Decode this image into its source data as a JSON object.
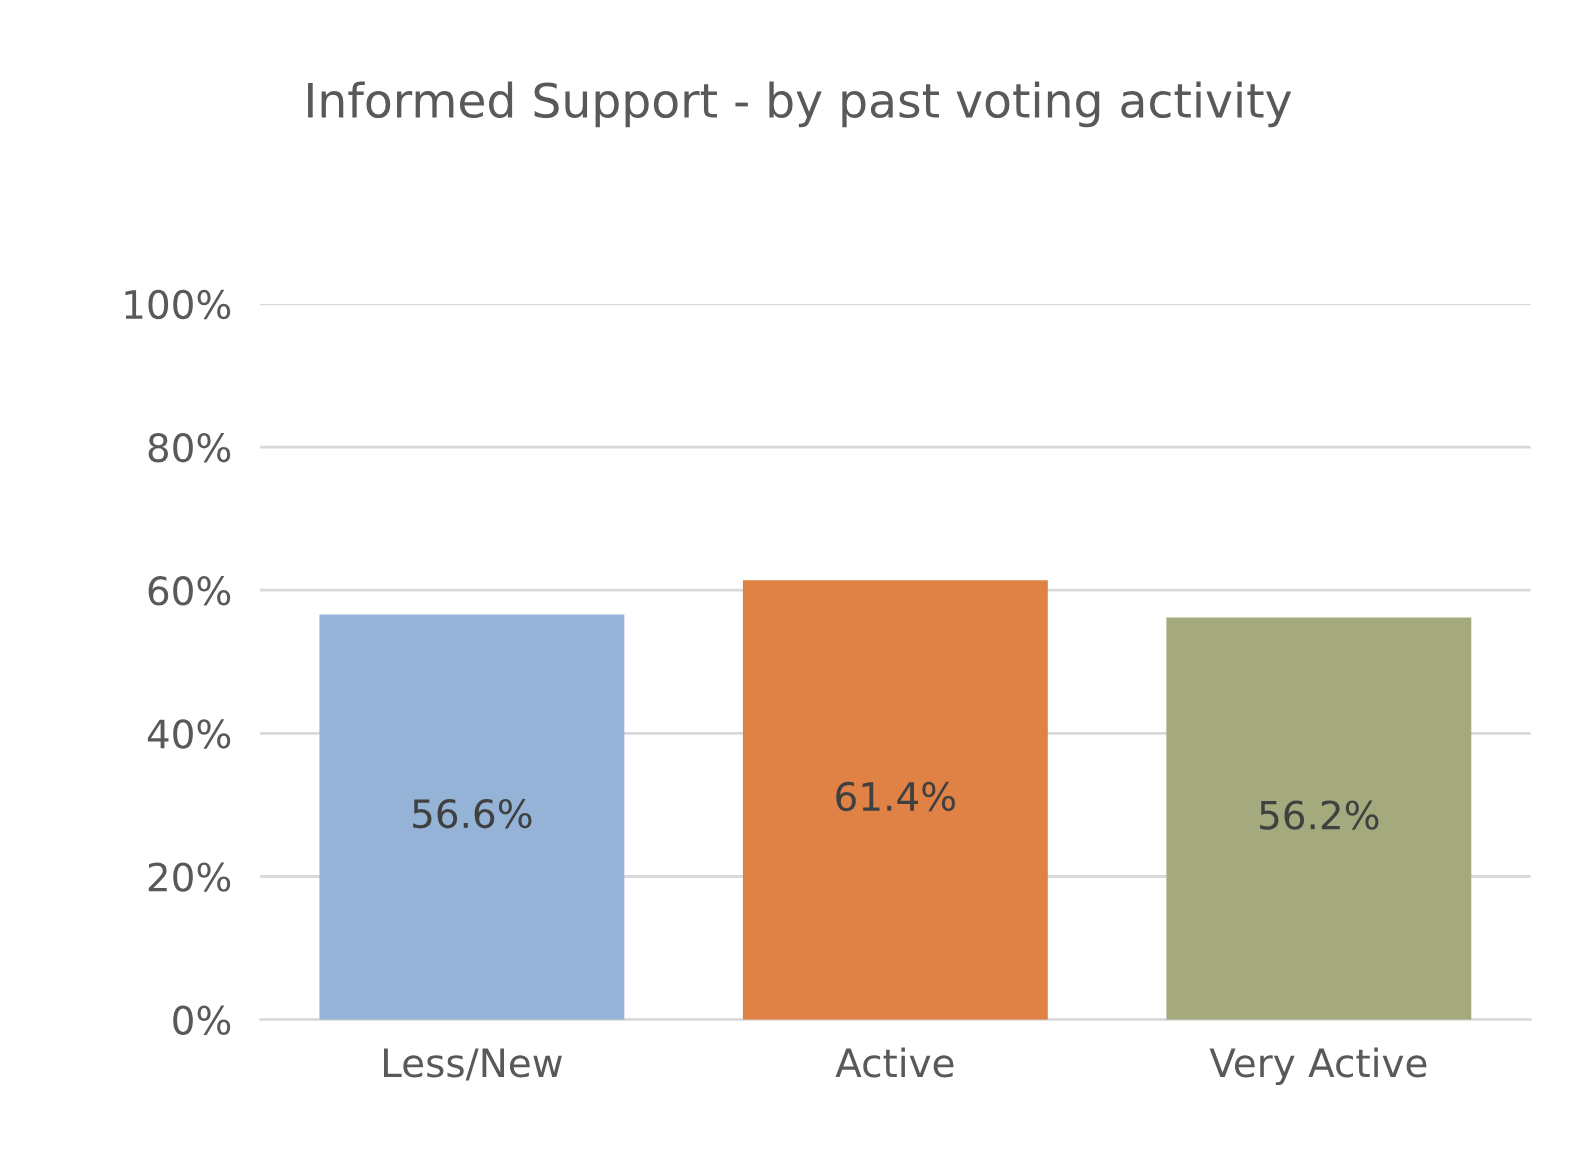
{
  "chart_data": {
    "type": "bar",
    "title": "Informed Support - by past voting activity",
    "categories": [
      "Less/New",
      "Active",
      "Very Active"
    ],
    "values": [
      56.6,
      61.4,
      56.2
    ],
    "colors": [
      "#95b3d7",
      "#e08146",
      "#a4aa7e"
    ],
    "value_labels": [
      "56.6%",
      "61.4%",
      "56.2%"
    ],
    "ylim": [
      0,
      100
    ],
    "yticks": [
      {
        "value": 0,
        "label": "0%"
      },
      {
        "value": 20,
        "label": "20%"
      },
      {
        "value": 40,
        "label": "40%"
      },
      {
        "value": 60,
        "label": "60%"
      },
      {
        "value": 80,
        "label": "80%"
      },
      {
        "value": 100,
        "label": "100%"
      }
    ],
    "grid": "y"
  }
}
